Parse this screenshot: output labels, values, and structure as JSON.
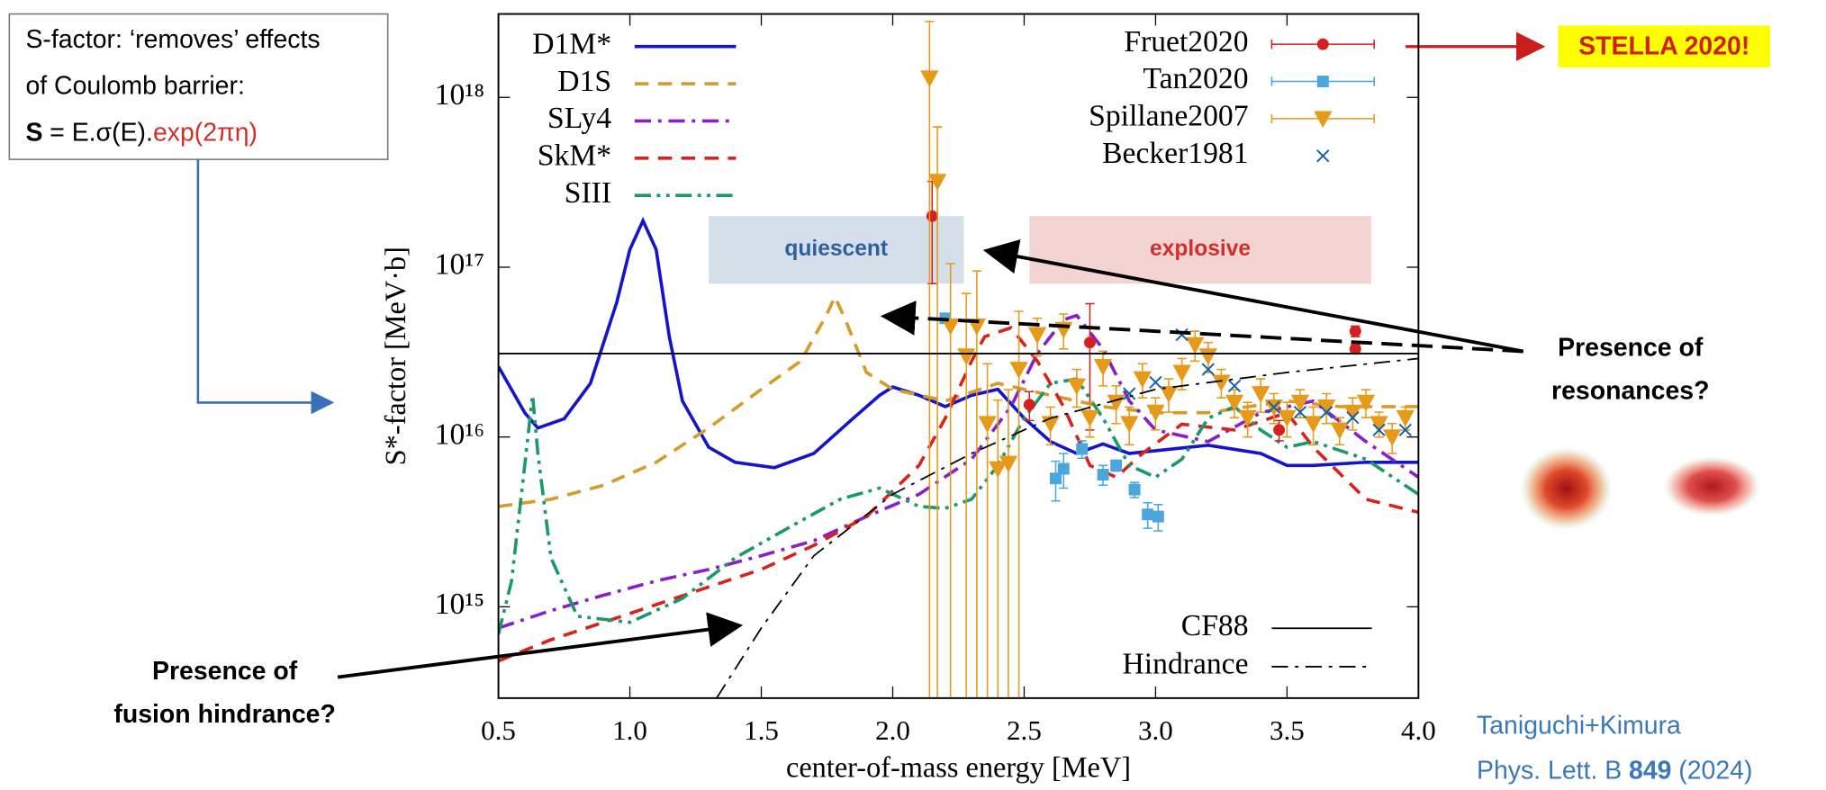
{
  "chart_data": {
    "type": "line",
    "x_label": "center-of-mass energy [MeV]",
    "y_label": "S*-factor [MeV·b]",
    "xlim": [
      0.5,
      4.0
    ],
    "xticks": [
      0.5,
      {
        "value": 1,
        "label": "1.0"
      },
      1.5,
      {
        "value": 2,
        "label": "2.0"
      },
      2.5,
      {
        "value": 3,
        "label": "3.0"
      },
      3.5,
      {
        "value": 4,
        "label": "4.0"
      }
    ],
    "ylim": [
      290000000000000.0,
      3.1e+18
    ],
    "yticks": [
      {
        "value": 1000000000000000.0,
        "label": "10¹⁵"
      },
      {
        "value": 1e+16,
        "label": "10¹⁶"
      },
      {
        "value": 1e+17,
        "label": "10¹⁷"
      },
      {
        "value": 1e+18,
        "label": "10¹⁸"
      }
    ],
    "log_y": true,
    "regions": [
      {
        "label": "quiescent",
        "x": [
          1.3,
          2.27
        ],
        "y": [
          8e+16,
          2e+17
        ],
        "color": "#d5dfe9",
        "text_color": "#2f5f9e"
      },
      {
        "label": "explosive",
        "x": [
          2.52,
          3.82
        ],
        "y": [
          8e+16,
          2e+17
        ],
        "color": "#f4d3d3",
        "text_color": "#d0302a"
      }
    ],
    "series": [
      {
        "name": "D1M*",
        "type": "line",
        "color": "#1414cc",
        "dash": "solid",
        "legend": "upper left",
        "x": [
          0.5,
          0.6,
          0.65,
          0.75,
          0.85,
          0.95,
          1.0,
          1.05,
          1.1,
          1.15,
          1.2,
          1.3,
          1.4,
          1.55,
          1.7,
          1.85,
          1.95,
          2.0,
          2.1,
          2.2,
          2.3,
          2.4,
          2.5,
          2.6,
          2.7,
          2.8,
          2.9,
          3.0,
          3.2,
          3.4,
          3.5,
          3.6,
          3.8,
          4.0
        ],
        "values": [
          2.6e+16,
          1.39e+16,
          1.13e+16,
          1.28e+16,
          2.07e+16,
          6.2e+16,
          1.27e+17,
          1.88e+17,
          1.27e+17,
          3.9e+16,
          1.63e+16,
          8700000000000000.0,
          7100000000000000.0,
          6600000000000000.0,
          8000000000000000.0,
          1.29e+16,
          1.76e+16,
          1.97e+16,
          1.76e+16,
          1.51e+16,
          1.76e+16,
          1.91e+16,
          1.29e+16,
          9400000000000000.0,
          8000000000000000.0,
          9100000000000000.0,
          8000000000000000.0,
          8300000000000000.0,
          8950000000000000.0,
          8000000000000000.0,
          6800000000000000.0,
          6800000000000000.0,
          7100000000000000.0,
          7100000000000000.0
        ]
      },
      {
        "name": "D1S",
        "type": "line",
        "color": "#d99a2a",
        "dash": "dashed",
        "legend": "upper left",
        "x": [
          0.5,
          0.7,
          0.9,
          1.1,
          1.3,
          1.5,
          1.65,
          1.75,
          1.78,
          1.82,
          1.9,
          2.0,
          2.2,
          2.4,
          2.6,
          2.8,
          3.0,
          3.2,
          3.5,
          3.7,
          4.0
        ],
        "values": [
          3900000000000000.0,
          4300000000000000.0,
          5200000000000000.0,
          7100000000000000.0,
          1.13e+16,
          1.91e+16,
          2.8e+16,
          5.3e+16,
          6.7e+16,
          4.9e+16,
          2.4e+16,
          1.91e+16,
          1.63e+16,
          2.07e+16,
          1.76e+16,
          1.51e+16,
          1.39e+16,
          1.39e+16,
          1.63e+16,
          1.51e+16,
          1.51e+16
        ]
      },
      {
        "name": "SLy4",
        "type": "line",
        "color": "#8a1fc8",
        "dash": "dashdot",
        "legend": "upper left",
        "x": [
          0.5,
          0.7,
          0.9,
          1.1,
          1.3,
          1.5,
          1.7,
          1.9,
          2.1,
          2.3,
          2.45,
          2.55,
          2.65,
          2.7,
          2.8,
          2.9,
          3.0,
          3.2,
          3.4,
          3.6,
          3.8,
          4.0
        ],
        "values": [
          750000000000000.0,
          950000000000000.0,
          1170000000000000.0,
          1420000000000000.0,
          1660000000000000.0,
          2000000000000000.0,
          2450000000000000.0,
          3400000000000000.0,
          4600000000000000.0,
          7400000000000000.0,
          1.51e+16,
          3.1e+16,
          4.9e+16,
          5.2e+16,
          3.3e+16,
          1.63e+16,
          1.1e+16,
          9400000000000000.0,
          1.39e+16,
          1.63e+16,
          9400000000000000.0,
          5800000000000000.0
        ]
      },
      {
        "name": "SkM*",
        "type": "line",
        "color": "#d8231c",
        "dash": "dashed",
        "legend": "upper left",
        "x": [
          0.5,
          0.7,
          0.9,
          1.1,
          1.3,
          1.5,
          1.7,
          1.9,
          2.1,
          2.2,
          2.3,
          2.35,
          2.45,
          2.55,
          2.65,
          2.75,
          2.85,
          2.95,
          3.1,
          3.3,
          3.5,
          3.6,
          3.8,
          4.0
        ],
        "values": [
          480000000000000.0,
          640000000000000.0,
          810000000000000.0,
          1030000000000000.0,
          1310000000000000.0,
          1660000000000000.0,
          2300000000000000.0,
          3400000000000000.0,
          6800000000000000.0,
          1.29e+16,
          2.8e+16,
          3.9e+16,
          4.4e+16,
          2.8e+16,
          1.51e+16,
          6800000000000000.0,
          5800000000000000.0,
          8000000000000000.0,
          1.19e+16,
          1.1e+16,
          1.39e+16,
          8700000000000000.0,
          4300000000000000.0,
          3600000000000000.0
        ]
      },
      {
        "name": "SIII",
        "type": "line",
        "color": "#1a9a6a",
        "dash": "dashdotdot",
        "legend": "upper left",
        "x": [
          0.5,
          0.55,
          0.6,
          0.63,
          0.65,
          0.7,
          0.8,
          1.0,
          1.2,
          1.4,
          1.6,
          1.8,
          1.95,
          2.1,
          2.2,
          2.3,
          2.4,
          2.5,
          2.6,
          2.7,
          2.8,
          2.9,
          3.0,
          3.1,
          3.2,
          3.3,
          3.4,
          3.5,
          3.6,
          3.8,
          4.0
        ],
        "values": [
          690000000000000.0,
          1420000000000000.0,
          6800000000000000.0,
          1.76e+16,
          8000000000000000.0,
          1940000000000000.0,
          880000000000000.0,
          810000000000000.0,
          1120000000000000.0,
          1940000000000000.0,
          2900000000000000.0,
          4300000000000000.0,
          5000000000000000.0,
          3900000000000000.0,
          3800000000000000.0,
          4300000000000000.0,
          6800000000000000.0,
          1.29e+16,
          2.07e+16,
          2.2e+16,
          1.29e+16,
          6800000000000000.0,
          5800000000000000.0,
          7400000000000000.0,
          1.29e+16,
          1.51e+16,
          1.1e+16,
          8700000000000000.0,
          9400000000000000.0,
          7400000000000000.0,
          4600000000000000.0
        ]
      },
      {
        "name": "Fruet2020",
        "type": "scatter",
        "marker": "circle",
        "color": "#d62020",
        "legend": "upper right",
        "x": [
          2.15,
          2.52,
          2.75,
          3.47,
          3.76,
          3.76
        ],
        "values": [
          2e+17,
          1.55e+16,
          3.6e+16,
          1.1e+16,
          4.2e+16,
          3.3e+16
        ],
        "errors": [
          1.2e+17,
          3000000000000000.0,
          2.5e+16,
          1500000000000000.0,
          3000000000000000.0,
          2000000000000000.0
        ]
      },
      {
        "name": "Tan2020",
        "type": "scatter",
        "marker": "square",
        "color": "#4aa6dd",
        "legend": "upper right",
        "x": [
          2.2,
          2.62,
          2.65,
          2.72,
          2.8,
          2.85,
          2.92,
          2.97,
          3.01
        ],
        "values": [
          5e+16,
          5700000000000000.0,
          6500000000000000.0,
          8500000000000000.0,
          6000000000000000.0,
          6800000000000000.0,
          4900000000000000.0,
          3500000000000000.0,
          3400000000000000.0
        ],
        "errors": [
          1000000000000000.0,
          1500000000000000.0,
          1500000000000000.0,
          1000000000000000.0,
          800000000000000.0,
          500000000000000.0,
          500000000000000.0,
          600000000000000.0,
          600000000000000.0
        ]
      },
      {
        "name": "Spillane2007",
        "type": "scatter",
        "marker": "triangle-down",
        "color": "#e69a1a",
        "legend": "upper right",
        "x": [
          2.14,
          2.17,
          2.22,
          2.28,
          2.32,
          2.36,
          2.4,
          2.44,
          2.48,
          2.55,
          2.6,
          2.65,
          2.7,
          2.75,
          2.8,
          2.85,
          2.9,
          2.95,
          3.0,
          3.05,
          3.1,
          3.15,
          3.2,
          3.25,
          3.3,
          3.35,
          3.4,
          3.45,
          3.5,
          3.55,
          3.6,
          3.65,
          3.7,
          3.75,
          3.8,
          3.85,
          3.9,
          3.95
        ],
        "values": [
          1.3e+18,
          3.2e+17,
          4.5e+16,
          3e+16,
          4.5e+16,
          1.2e+16,
          6500000000000000.0,
          7000000000000000.0,
          2.5e+16,
          4e+16,
          1.2e+16,
          4.3e+16,
          2e+16,
          1.3e+16,
          2.6e+16,
          1.6e+16,
          1.2e+16,
          2.2e+16,
          1.4e+16,
          1.8e+16,
          2.4e+16,
          3.5e+16,
          3e+16,
          2.1e+16,
          1.6e+16,
          1.3e+16,
          1.8e+16,
          1.5e+16,
          1.3e+16,
          1.6e+16,
          1.2e+16,
          1.5e+16,
          1.1e+16,
          1.4e+16,
          1.6e+16,
          1.2e+16,
          1e+16,
          1.3e+16
        ],
        "errors": [
          1.5e+18,
          3.5e+17,
          6e+16,
          4e+16,
          5e+16,
          1.5e+16,
          1e+16,
          1.2e+16,
          3e+16,
          1e+16,
          3000000000000000.0,
          1e+16,
          5000000000000000.0,
          3000000000000000.0,
          6000000000000000.0,
          4000000000000000.0,
          3000000000000000.0,
          5000000000000000.0,
          3000000000000000.0,
          4000000000000000.0,
          5000000000000000.0,
          7000000000000000.0,
          6000000000000000.0,
          4000000000000000.0,
          3000000000000000.0,
          3000000000000000.0,
          4000000000000000.0,
          3000000000000000.0,
          3000000000000000.0,
          3000000000000000.0,
          3000000000000000.0,
          3000000000000000.0,
          2000000000000000.0,
          3000000000000000.0,
          3000000000000000.0,
          2000000000000000.0,
          2000000000000000.0,
          2000000000000000.0
        ]
      },
      {
        "name": "Becker1981",
        "type": "scatter",
        "marker": "x",
        "color": "#1060b0",
        "legend": "upper right",
        "x": [
          2.9,
          3.0,
          3.1,
          3.2,
          3.3,
          3.45,
          3.55,
          3.65,
          3.75,
          3.85,
          3.95
        ],
        "values": [
          1.8e+16,
          2.1e+16,
          4e+16,
          2.5e+16,
          2e+16,
          1.5e+16,
          1.4e+16,
          1.4e+16,
          1.3e+16,
          1.1e+16,
          1.1e+16
        ]
      },
      {
        "name": "CF88",
        "type": "line",
        "color": "#000000",
        "dash": "solid",
        "legend": "lower right",
        "x": [
          0.5,
          4.0
        ],
        "values": [
          3.1e+16,
          3.1e+16
        ]
      },
      {
        "name": "Hindrance",
        "type": "line",
        "color": "#000000",
        "dash": "dashdot",
        "legend": "lower right",
        "x": [
          1.33,
          1.5,
          1.7,
          2.0,
          2.3,
          2.6,
          3.0,
          3.5,
          4.0
        ],
        "values": [
          290000000000000.0,
          750000000000000.0,
          2000000000000000.0,
          4600000000000000.0,
          8000000000000000.0,
          1.29e+16,
          1.91e+16,
          2.4e+16,
          2.9e+16
        ]
      }
    ],
    "annotations": {
      "sfactor_box": {
        "lines": [
          "S-factor: ‘removes’ effects",
          "of Coulomb barrier:"
        ],
        "formula_s": "S",
        "formula_mid": "= E.σ(E).",
        "formula_exp": "exp(2πη)"
      },
      "stella": "STELLA 2020!",
      "resonances": [
        "Presence of",
        "resonances?"
      ],
      "hindrance": [
        "Presence of",
        "fusion hindrance?"
      ],
      "reference": {
        "authors": "Taniguchi+Kimura",
        "journal": "Phys. Lett. B",
        "volume": "849",
        "year": "(2024)"
      }
    }
  }
}
